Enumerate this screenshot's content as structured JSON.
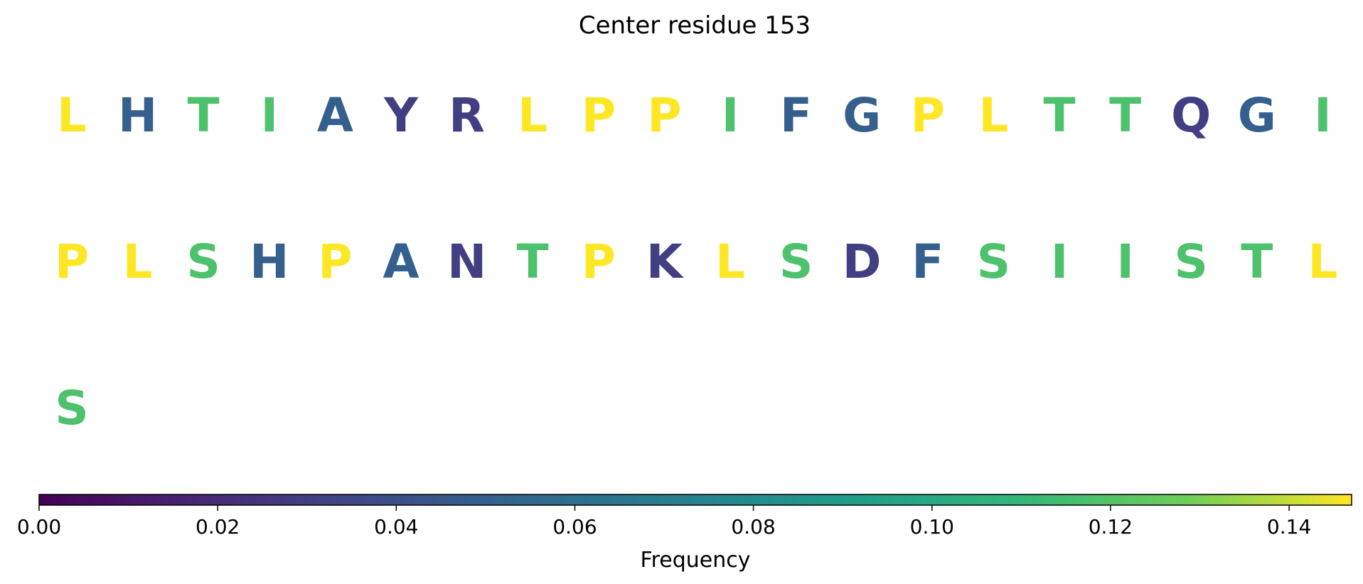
{
  "chart_data": {
    "type": "table",
    "title": "Center residue 153",
    "colorbar": {
      "label": "Frequency",
      "range": [
        0,
        0.147
      ],
      "ticks": [
        0.0,
        0.02,
        0.04,
        0.06,
        0.08,
        0.1,
        0.12,
        0.14
      ],
      "tick_labels": [
        "0.00",
        "0.02",
        "0.04",
        "0.06",
        "0.08",
        "0.10",
        "0.12",
        "0.14"
      ],
      "colormap": "viridis",
      "orientation": "horizontal",
      "placement": "bottom"
    },
    "columns": 20,
    "residues": [
      {
        "letter": "L",
        "frequency": 0.147
      },
      {
        "letter": "H",
        "frequency": 0.05
      },
      {
        "letter": "T",
        "frequency": 0.118
      },
      {
        "letter": "I",
        "frequency": 0.118
      },
      {
        "letter": "A",
        "frequency": 0.05
      },
      {
        "letter": "Y",
        "frequency": 0.03
      },
      {
        "letter": "R",
        "frequency": 0.03
      },
      {
        "letter": "L",
        "frequency": 0.147
      },
      {
        "letter": "P",
        "frequency": 0.147
      },
      {
        "letter": "P",
        "frequency": 0.147
      },
      {
        "letter": "I",
        "frequency": 0.118
      },
      {
        "letter": "F",
        "frequency": 0.05
      },
      {
        "letter": "G",
        "frequency": 0.05
      },
      {
        "letter": "P",
        "frequency": 0.147
      },
      {
        "letter": "L",
        "frequency": 0.147
      },
      {
        "letter": "T",
        "frequency": 0.118
      },
      {
        "letter": "T",
        "frequency": 0.118
      },
      {
        "letter": "Q",
        "frequency": 0.03
      },
      {
        "letter": "G",
        "frequency": 0.05
      },
      {
        "letter": "I",
        "frequency": 0.118
      },
      {
        "letter": "P",
        "frequency": 0.147
      },
      {
        "letter": "L",
        "frequency": 0.147
      },
      {
        "letter": "S",
        "frequency": 0.118
      },
      {
        "letter": "H",
        "frequency": 0.05
      },
      {
        "letter": "P",
        "frequency": 0.147
      },
      {
        "letter": "A",
        "frequency": 0.05
      },
      {
        "letter": "N",
        "frequency": 0.03
      },
      {
        "letter": "T",
        "frequency": 0.118
      },
      {
        "letter": "P",
        "frequency": 0.147
      },
      {
        "letter": "K",
        "frequency": 0.03
      },
      {
        "letter": "L",
        "frequency": 0.147
      },
      {
        "letter": "S",
        "frequency": 0.118
      },
      {
        "letter": "D",
        "frequency": 0.03
      },
      {
        "letter": "F",
        "frequency": 0.05
      },
      {
        "letter": "S",
        "frequency": 0.118
      },
      {
        "letter": "I",
        "frequency": 0.118
      },
      {
        "letter": "I",
        "frequency": 0.118
      },
      {
        "letter": "S",
        "frequency": 0.118
      },
      {
        "letter": "T",
        "frequency": 0.118
      },
      {
        "letter": "L",
        "frequency": 0.147
      },
      {
        "letter": "S",
        "frequency": 0.118
      }
    ]
  }
}
